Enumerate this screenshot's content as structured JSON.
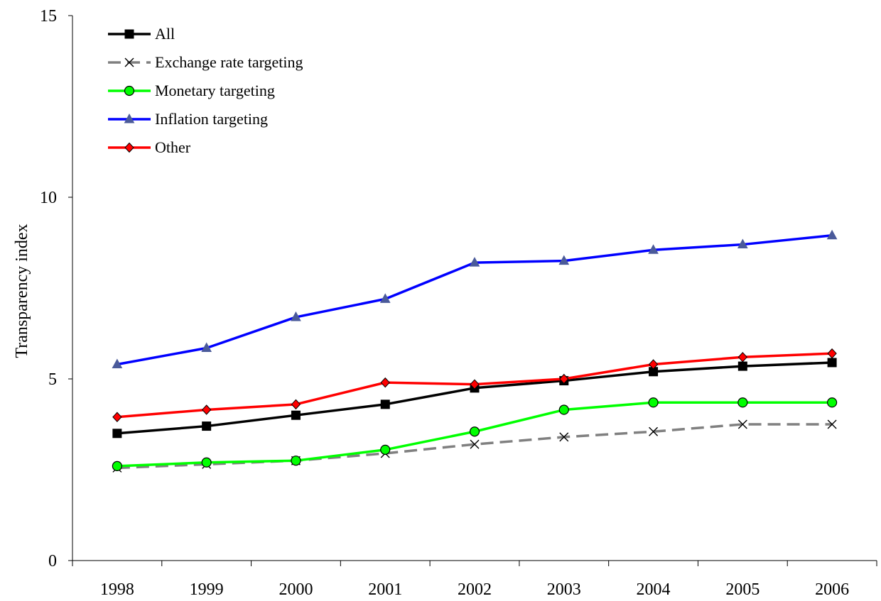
{
  "chart_data": {
    "type": "line",
    "title": "",
    "xlabel": "",
    "ylabel": "Transparency index",
    "ylim": [
      0,
      15
    ],
    "yticks": [
      0,
      5,
      10,
      15
    ],
    "categories": [
      "1998",
      "1999",
      "2000",
      "2001",
      "2002",
      "2003",
      "2004",
      "2005",
      "2006"
    ],
    "grid": false,
    "legend": "top-left",
    "series": [
      {
        "name": "All",
        "color": "#000000",
        "marker": "square",
        "dash": false,
        "values": [
          3.5,
          3.7,
          4.0,
          4.3,
          4.75,
          4.95,
          5.2,
          5.35,
          5.45
        ]
      },
      {
        "name": "Exchange rate targeting",
        "color": "#808080",
        "marker": "x",
        "dash": true,
        "values": [
          2.55,
          2.65,
          2.75,
          2.95,
          3.2,
          3.4,
          3.55,
          3.75,
          3.75
        ]
      },
      {
        "name": "Monetary targeting",
        "color": "#00ff00",
        "marker": "circle",
        "dash": false,
        "values": [
          2.6,
          2.7,
          2.75,
          3.05,
          3.55,
          4.15,
          4.35,
          4.35,
          4.35
        ]
      },
      {
        "name": "Inflation targeting",
        "color": "#0000ff",
        "marker": "triangle",
        "dash": false,
        "values": [
          5.4,
          5.85,
          6.7,
          7.2,
          8.2,
          8.25,
          8.55,
          8.7,
          8.95
        ]
      },
      {
        "name": "Other",
        "color": "#ff0000",
        "marker": "diamond",
        "dash": false,
        "values": [
          3.95,
          4.15,
          4.3,
          4.9,
          4.85,
          5.0,
          5.4,
          5.6,
          5.7
        ]
      }
    ]
  }
}
